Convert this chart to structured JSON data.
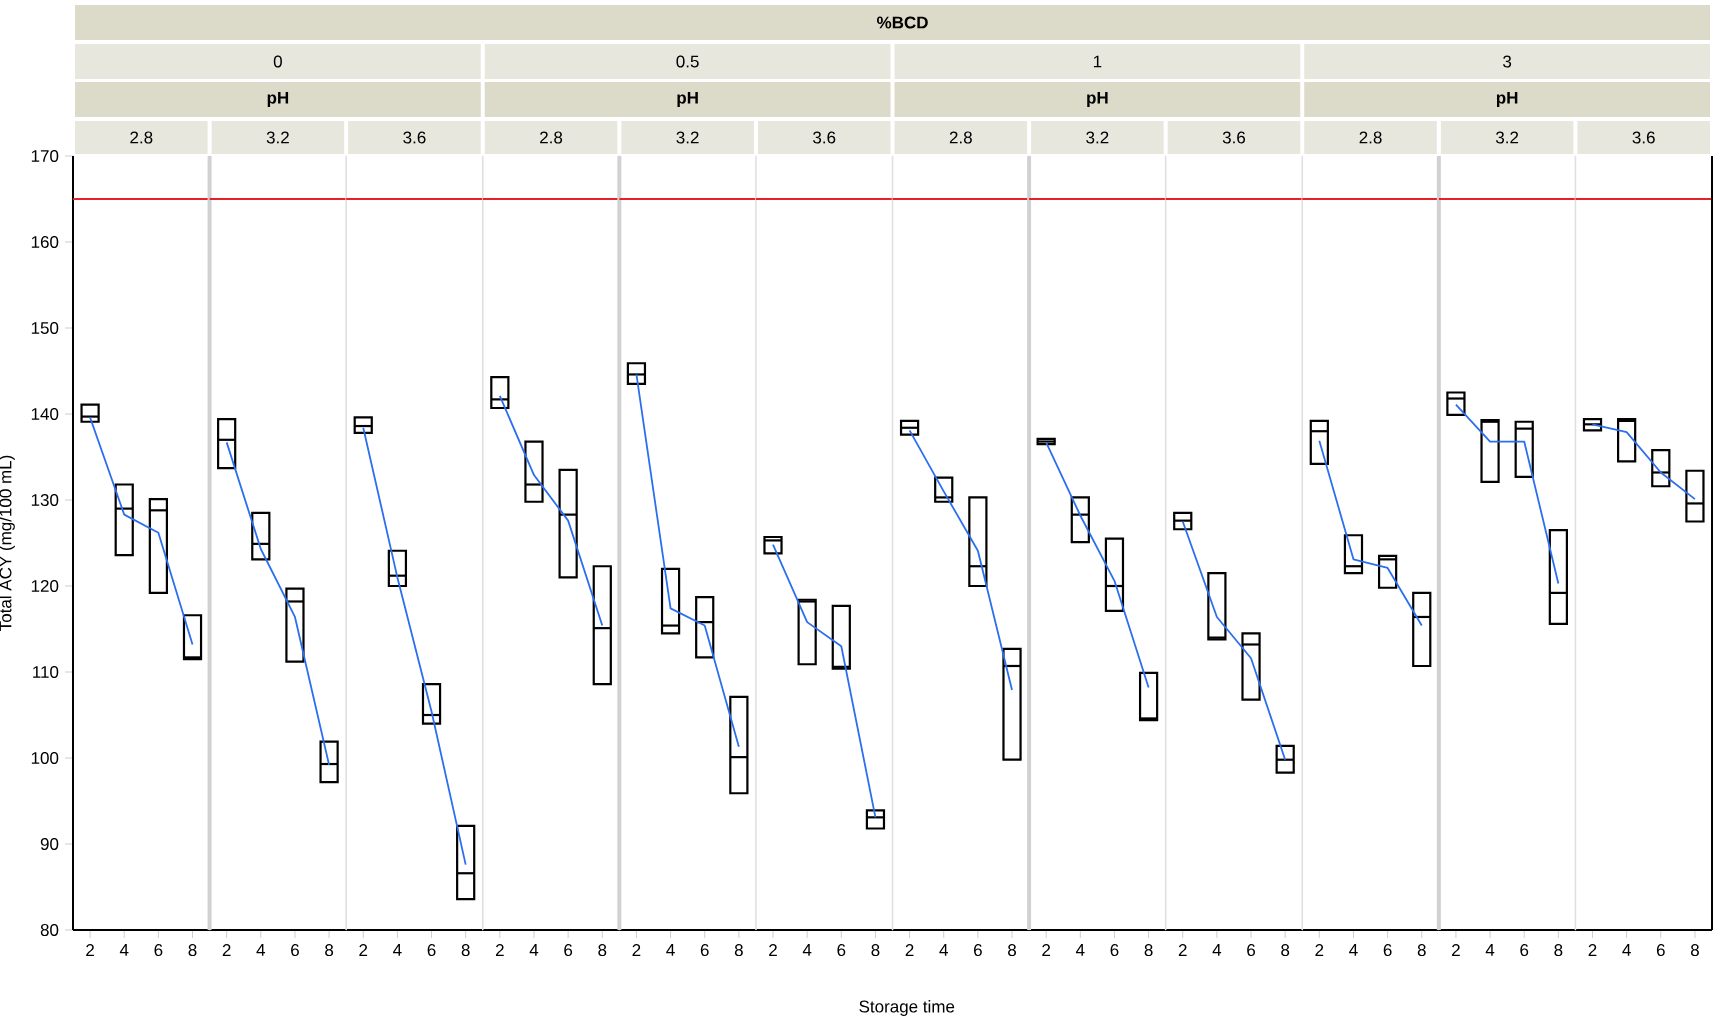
{
  "chart_data": [
    {
      "type": "box",
      "title": "2.8",
      "ylabel": "Total ACY (mg/100 mL)",
      "categories": [
        "2",
        "4",
        "6",
        "8"
      ],
      "ylim": [
        80,
        170
      ],
      "yticks": [
        80,
        90,
        100,
        110,
        120,
        130,
        140,
        150,
        160,
        170
      ],
      "boxes": [
        {
          "low": 139.1,
          "q1": 139.1,
          "median": 139.7,
          "q3": 141.1,
          "high": 141.1
        },
        {
          "low": 123.6,
          "q1": 123.6,
          "median": 129.0,
          "q3": 131.8,
          "high": 131.8
        },
        {
          "low": 119.2,
          "q1": 119.2,
          "median": 128.8,
          "q3": 130.1,
          "high": 130.1
        },
        {
          "low": 111.5,
          "q1": 111.5,
          "median": 111.7,
          "q3": 116.6,
          "high": 116.6
        }
      ],
      "series": [
        {
          "type": "line",
          "color": "#2b6ff0",
          "values": [
            139.6,
            128.3,
            126.2,
            113.2
          ]
        }
      ],
      "ref_lines": [
        {
          "axis": "y",
          "value": 165,
          "color": "#e8202a"
        }
      ]
    },
    {
      "type": "box",
      "title": "3.2",
      "subtitle": "0",
      "annotations": [
        "pH"
      ],
      "categories": [
        "2",
        "4",
        "6",
        "8"
      ],
      "ylim": [
        80,
        170
      ],
      "tick_labels": "x",
      "boxes": [
        {
          "low": 133.7,
          "q1": 133.7,
          "median": 137.0,
          "q3": 139.4,
          "high": 139.4
        },
        {
          "low": 123.1,
          "q1": 123.1,
          "median": 124.9,
          "q3": 128.5,
          "high": 128.5
        },
        {
          "low": 111.2,
          "q1": 111.2,
          "median": 118.2,
          "q3": 119.7,
          "high": 119.7
        },
        {
          "low": 97.2,
          "q1": 97.2,
          "median": 99.3,
          "q3": 101.9,
          "high": 101.9
        }
      ],
      "series": [
        {
          "type": "line",
          "color": "#2b6ff0",
          "values": [
            136.7,
            124.3,
            116.4,
            99.2
          ]
        }
      ],
      "ref_lines": [
        {
          "axis": "y",
          "value": 165,
          "color": "#e8202a"
        }
      ]
    },
    {
      "type": "box",
      "title": "3.6",
      "categories": [
        "2",
        "4",
        "6",
        "8"
      ],
      "ylim": [
        80,
        170
      ],
      "tick_labels": "x",
      "boxes": [
        {
          "low": 137.8,
          "q1": 137.8,
          "median": 138.6,
          "q3": 139.6,
          "high": 139.6
        },
        {
          "low": 120.0,
          "q1": 120.0,
          "median": 121.2,
          "q3": 124.1,
          "high": 124.1
        },
        {
          "low": 104.0,
          "q1": 104.0,
          "median": 105.0,
          "q3": 108.6,
          "high": 108.6
        },
        {
          "low": 83.6,
          "q1": 83.6,
          "median": 86.6,
          "q3": 92.1,
          "high": 92.1
        }
      ],
      "series": [
        {
          "type": "line",
          "color": "#2b6ff0",
          "values": [
            138.4,
            121.0,
            105.4,
            87.6
          ]
        }
      ],
      "ref_lines": [
        {
          "axis": "y",
          "value": 165,
          "color": "#e8202a"
        }
      ]
    },
    {
      "type": "box",
      "title": "2.8",
      "categories": [
        "2",
        "4",
        "6",
        "8"
      ],
      "ylim": [
        80,
        170
      ],
      "tick_labels": "x",
      "boxes": [
        {
          "low": 140.7,
          "q1": 140.7,
          "median": 141.7,
          "q3": 144.3,
          "high": 144.3
        },
        {
          "low": 129.8,
          "q1": 129.8,
          "median": 131.8,
          "q3": 136.8,
          "high": 136.8
        },
        {
          "low": 121.0,
          "q1": 121.0,
          "median": 128.3,
          "q3": 133.5,
          "high": 133.5
        },
        {
          "low": 108.6,
          "q1": 108.6,
          "median": 115.1,
          "q3": 122.3,
          "high": 122.3
        }
      ],
      "series": [
        {
          "type": "line",
          "color": "#2b6ff0",
          "values": [
            142.1,
            132.9,
            127.6,
            115.4
          ]
        }
      ],
      "ref_lines": [
        {
          "axis": "y",
          "value": 165,
          "color": "#e8202a"
        }
      ]
    },
    {
      "type": "box",
      "title": "3.2",
      "subtitle": "0.5",
      "annotations": [
        "pH"
      ],
      "categories": [
        "2",
        "4",
        "6",
        "8"
      ],
      "ylim": [
        80,
        170
      ],
      "tick_labels": "x",
      "boxes": [
        {
          "low": 143.5,
          "q1": 143.5,
          "median": 144.6,
          "q3": 145.9,
          "high": 145.9
        },
        {
          "low": 114.5,
          "q1": 114.5,
          "median": 115.4,
          "q3": 122.0,
          "high": 122.0
        },
        {
          "low": 111.7,
          "q1": 111.7,
          "median": 115.8,
          "q3": 118.7,
          "high": 118.7
        },
        {
          "low": 95.9,
          "q1": 95.9,
          "median": 100.1,
          "q3": 107.1,
          "high": 107.1
        }
      ],
      "series": [
        {
          "type": "line",
          "color": "#2b6ff0",
          "values": [
            144.6,
            117.4,
            115.4,
            101.3
          ]
        }
      ],
      "ref_lines": [
        {
          "axis": "y",
          "value": 165,
          "color": "#e8202a"
        }
      ]
    },
    {
      "type": "box",
      "title": "3.6",
      "categories": [
        "2",
        "4",
        "6",
        "8"
      ],
      "ylim": [
        80,
        170
      ],
      "tick_labels": "x",
      "boxes": [
        {
          "low": 123.8,
          "q1": 123.8,
          "median": 125.3,
          "q3": 125.7,
          "high": 125.7
        },
        {
          "low": 110.9,
          "q1": 110.9,
          "median": 118.2,
          "q3": 118.4,
          "high": 118.4
        },
        {
          "low": 110.4,
          "q1": 110.4,
          "median": 110.6,
          "q3": 117.7,
          "high": 117.7
        },
        {
          "low": 91.8,
          "q1": 91.8,
          "median": 93.1,
          "q3": 93.9,
          "high": 93.9
        }
      ],
      "series": [
        {
          "type": "line",
          "color": "#2b6ff0",
          "values": [
            124.8,
            115.8,
            113.0,
            93.1
          ]
        }
      ],
      "ref_lines": [
        {
          "axis": "y",
          "value": 165,
          "color": "#e8202a"
        }
      ]
    },
    {
      "type": "box",
      "title": "2.8",
      "annotations": [
        "%BCD"
      ],
      "xlabel": "Storage time",
      "categories": [
        "2",
        "4",
        "6",
        "8"
      ],
      "ylim": [
        80,
        170
      ],
      "tick_labels": "x",
      "boxes": [
        {
          "low": 137.6,
          "q1": 137.6,
          "median": 138.4,
          "q3": 139.2,
          "high": 139.2
        },
        {
          "low": 129.8,
          "q1": 129.8,
          "median": 130.3,
          "q3": 132.6,
          "high": 132.6
        },
        {
          "low": 120.0,
          "q1": 120.0,
          "median": 122.3,
          "q3": 130.3,
          "high": 130.3
        },
        {
          "low": 99.8,
          "q1": 99.8,
          "median": 110.7,
          "q3": 112.7,
          "high": 112.7
        }
      ],
      "series": [
        {
          "type": "line",
          "color": "#2b6ff0",
          "values": [
            138.1,
            131.0,
            124.1,
            107.9
          ]
        }
      ],
      "ref_lines": [
        {
          "axis": "y",
          "value": 165,
          "color": "#e8202a"
        }
      ]
    },
    {
      "type": "box",
      "title": "3.2",
      "subtitle": "1",
      "annotations": [
        "pH"
      ],
      "categories": [
        "2",
        "4",
        "6",
        "8"
      ],
      "ylim": [
        80,
        170
      ],
      "tick_labels": "x",
      "boxes": [
        {
          "low": 136.5,
          "q1": 136.5,
          "median": 136.8,
          "q3": 137.1,
          "high": 137.1
        },
        {
          "low": 125.1,
          "q1": 125.1,
          "median": 128.3,
          "q3": 130.3,
          "high": 130.3
        },
        {
          "low": 117.1,
          "q1": 117.1,
          "median": 120.0,
          "q3": 125.5,
          "high": 125.5
        },
        {
          "low": 104.4,
          "q1": 104.4,
          "median": 104.6,
          "q3": 109.9,
          "high": 109.9
        }
      ],
      "series": [
        {
          "type": "line",
          "color": "#2b6ff0",
          "values": [
            136.7,
            128.2,
            120.6,
            108.2
          ]
        }
      ],
      "ref_lines": [
        {
          "axis": "y",
          "value": 165,
          "color": "#e8202a"
        }
      ]
    },
    {
      "type": "box",
      "title": "3.6",
      "categories": [
        "2",
        "4",
        "6",
        "8"
      ],
      "ylim": [
        80,
        170
      ],
      "tick_labels": "x",
      "boxes": [
        {
          "low": 126.6,
          "q1": 126.6,
          "median": 127.6,
          "q3": 128.5,
          "high": 128.5
        },
        {
          "low": 113.8,
          "q1": 113.8,
          "median": 114.0,
          "q3": 121.5,
          "high": 121.5
        },
        {
          "low": 106.8,
          "q1": 106.8,
          "median": 113.2,
          "q3": 114.5,
          "high": 114.5
        },
        {
          "low": 98.3,
          "q1": 98.3,
          "median": 99.8,
          "q3": 101.4,
          "high": 101.4
        }
      ],
      "series": [
        {
          "type": "line",
          "color": "#2b6ff0",
          "values": [
            127.5,
            116.4,
            111.6,
            99.8
          ]
        }
      ],
      "ref_lines": [
        {
          "axis": "y",
          "value": 165,
          "color": "#e8202a"
        }
      ]
    },
    {
      "type": "box",
      "title": "2.8",
      "categories": [
        "2",
        "4",
        "6",
        "8"
      ],
      "ylim": [
        80,
        170
      ],
      "tick_labels": "x",
      "boxes": [
        {
          "low": 134.2,
          "q1": 134.2,
          "median": 138.0,
          "q3": 139.2,
          "high": 139.2
        },
        {
          "low": 121.5,
          "q1": 121.5,
          "median": 122.3,
          "q3": 125.9,
          "high": 125.9
        },
        {
          "low": 119.8,
          "q1": 119.8,
          "median": 123.1,
          "q3": 123.5,
          "high": 123.5
        },
        {
          "low": 110.7,
          "q1": 110.7,
          "median": 116.4,
          "q3": 119.2,
          "high": 119.2
        }
      ],
      "series": [
        {
          "type": "line",
          "color": "#2b6ff0",
          "values": [
            136.9,
            123.1,
            122.1,
            115.4
          ]
        }
      ],
      "ref_lines": [
        {
          "axis": "y",
          "value": 165,
          "color": "#e8202a"
        }
      ]
    },
    {
      "type": "box",
      "title": "3.2",
      "subtitle": "3",
      "annotations": [
        "pH"
      ],
      "categories": [
        "2",
        "4",
        "6",
        "8"
      ],
      "ylim": [
        80,
        170
      ],
      "tick_labels": "x",
      "boxes": [
        {
          "low": 139.9,
          "q1": 139.9,
          "median": 141.8,
          "q3": 142.5,
          "high": 142.5
        },
        {
          "low": 132.1,
          "q1": 132.1,
          "median": 139.1,
          "q3": 139.3,
          "high": 139.3
        },
        {
          "low": 132.7,
          "q1": 132.7,
          "median": 138.3,
          "q3": 139.1,
          "high": 139.1
        },
        {
          "low": 115.6,
          "q1": 115.6,
          "median": 119.2,
          "q3": 126.5,
          "high": 126.5
        }
      ],
      "series": [
        {
          "type": "line",
          "color": "#2b6ff0",
          "values": [
            141.1,
            136.8,
            136.8,
            120.3
          ]
        }
      ],
      "ref_lines": [
        {
          "axis": "y",
          "value": 165,
          "color": "#e8202a"
        }
      ]
    },
    {
      "type": "box",
      "title": "3.6",
      "categories": [
        "2",
        "4",
        "6",
        "8"
      ],
      "ylim": [
        80,
        170
      ],
      "tick_labels": "x",
      "boxes": [
        {
          "low": 138.1,
          "q1": 138.1,
          "median": 138.8,
          "q3": 139.4,
          "high": 139.4
        },
        {
          "low": 134.5,
          "q1": 134.5,
          "median": 139.2,
          "q3": 139.4,
          "high": 139.4
        },
        {
          "low": 131.6,
          "q1": 131.6,
          "median": 133.2,
          "q3": 135.8,
          "high": 135.8
        },
        {
          "low": 127.5,
          "q1": 127.5,
          "median": 129.6,
          "q3": 133.4,
          "high": 133.4
        }
      ],
      "series": [
        {
          "type": "line",
          "color": "#2b6ff0",
          "values": [
            138.8,
            137.9,
            133.2,
            130.1
          ]
        }
      ],
      "ref_lines": [
        {
          "axis": "y",
          "value": 165,
          "color": "#e8202a"
        }
      ]
    }
  ]
}
